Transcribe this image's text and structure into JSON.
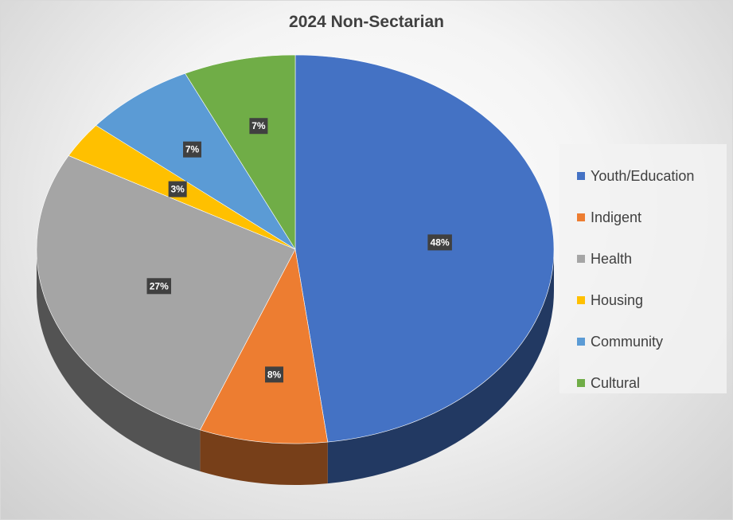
{
  "chart_data": {
    "type": "pie",
    "title": "2024 Non-Sectarian",
    "categories": [
      "Youth/Education",
      "Indigent",
      "Health",
      "Housing",
      "Community",
      "Cultural"
    ],
    "values": [
      48,
      8,
      27,
      3,
      7,
      7
    ],
    "data_labels": [
      "48%",
      "8%",
      "27%",
      "3%",
      "7%",
      "7%"
    ],
    "colors": [
      "#4472C4",
      "#ED7D31",
      "#A5A5A5",
      "#FFC000",
      "#5B9BD5",
      "#70AD47"
    ],
    "legend_position": "right",
    "style": "3d"
  }
}
